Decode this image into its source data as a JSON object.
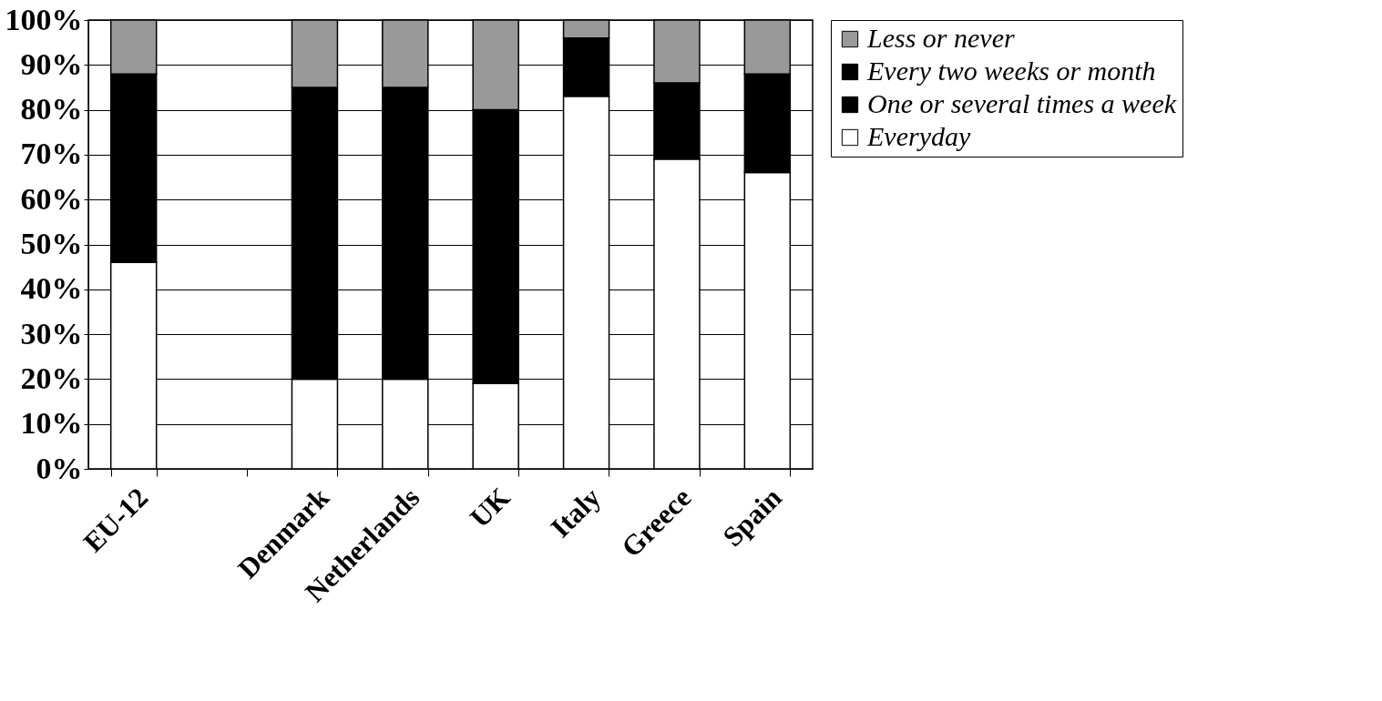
{
  "chart_data": {
    "type": "bar",
    "stacked": true,
    "categories": [
      "EU-12",
      null,
      "Denmark",
      "Netherlands",
      "UK",
      "Italy",
      "Greece",
      "Spain"
    ],
    "series": [
      {
        "name": "Everyday",
        "color": "#ffffff",
        "values": [
          46,
          null,
          20,
          20,
          19,
          83,
          69,
          66
        ]
      },
      {
        "name": "One or several times a week",
        "color": "#000000",
        "values": [
          42,
          null,
          65,
          65,
          61,
          13,
          17,
          22
        ]
      },
      {
        "name": "Every two weeks or month",
        "color": "#000000",
        "values": [
          null,
          null,
          null,
          null,
          null,
          null,
          null,
          null
        ]
      },
      {
        "name": "Less or never",
        "color": "#999999",
        "values": [
          12,
          null,
          15,
          15,
          20,
          4,
          14,
          12
        ]
      }
    ],
    "ylim": [
      0,
      100
    ],
    "yticks": [
      {
        "value": 0,
        "label": "0%"
      },
      {
        "value": 10,
        "label": "10%"
      },
      {
        "value": 20,
        "label": "20%"
      },
      {
        "value": 30,
        "label": "30%"
      },
      {
        "value": 40,
        "label": "40%"
      },
      {
        "value": 50,
        "label": "50%"
      },
      {
        "value": 60,
        "label": "60%"
      },
      {
        "value": 70,
        "label": "70%"
      },
      {
        "value": 80,
        "label": "80%"
      },
      {
        "value": 90,
        "label": "90%"
      },
      {
        "value": 100,
        "label": "100%"
      }
    ],
    "grid": "y",
    "legend": "right"
  }
}
